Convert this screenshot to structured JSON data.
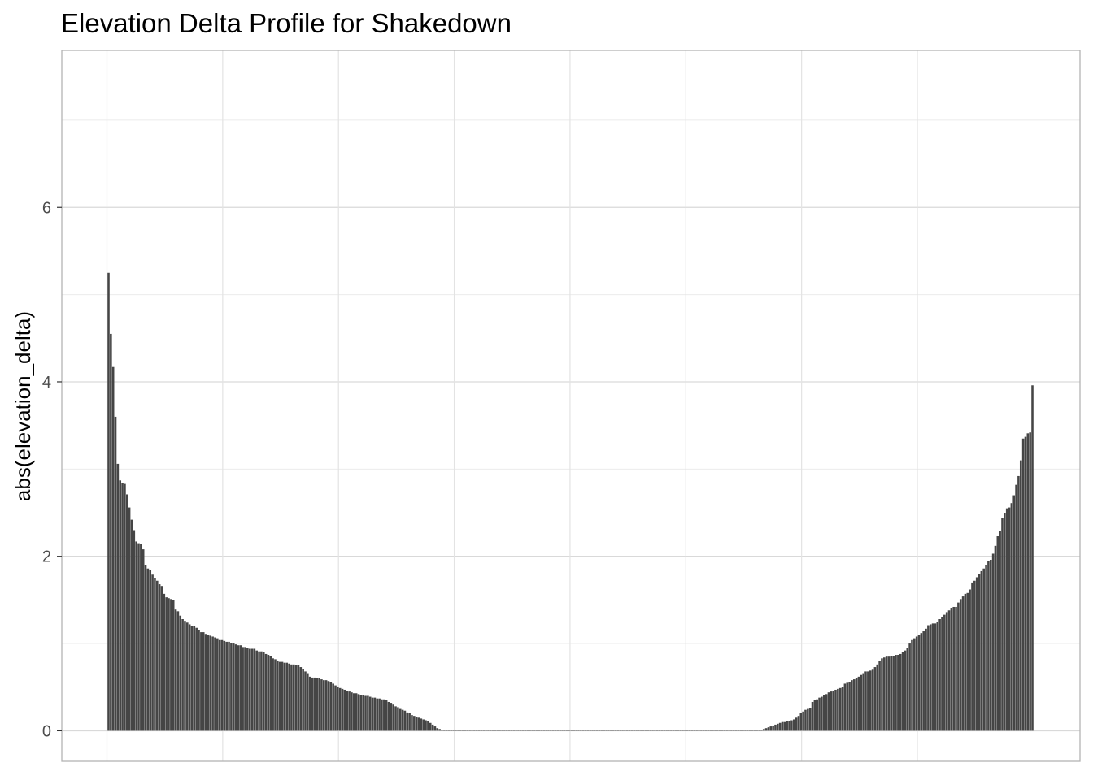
{
  "chart_data": {
    "type": "bar",
    "title": "Elevation Delta Profile for Shakedown",
    "xlabel": "",
    "ylabel": "abs(elevation_delta)",
    "ylim": [
      -0.35,
      7.8
    ],
    "yticks": [
      0,
      2,
      4,
      6
    ],
    "ytick_labels": [
      "0",
      "2",
      "4",
      "6"
    ],
    "grid": true,
    "bar_color": "#454545",
    "values": [
      5.25,
      4.55,
      4.17,
      3.6,
      3.06,
      2.87,
      2.84,
      2.83,
      2.71,
      2.56,
      2.42,
      2.3,
      2.17,
      2.15,
      2.14,
      2.08,
      1.9,
      1.86,
      1.84,
      1.79,
      1.75,
      1.72,
      1.68,
      1.66,
      1.57,
      1.53,
      1.52,
      1.51,
      1.5,
      1.39,
      1.37,
      1.32,
      1.28,
      1.26,
      1.24,
      1.22,
      1.2,
      1.2,
      1.18,
      1.15,
      1.13,
      1.13,
      1.11,
      1.1,
      1.09,
      1.08,
      1.07,
      1.06,
      1.04,
      1.04,
      1.03,
      1.02,
      1.02,
      1.01,
      1.0,
      0.99,
      0.98,
      0.98,
      0.96,
      0.96,
      0.95,
      0.94,
      0.94,
      0.94,
      0.92,
      0.91,
      0.91,
      0.9,
      0.88,
      0.87,
      0.86,
      0.83,
      0.82,
      0.8,
      0.79,
      0.79,
      0.78,
      0.78,
      0.77,
      0.76,
      0.76,
      0.75,
      0.75,
      0.73,
      0.71,
      0.68,
      0.66,
      0.62,
      0.61,
      0.61,
      0.6,
      0.6,
      0.59,
      0.58,
      0.58,
      0.57,
      0.56,
      0.54,
      0.52,
      0.5,
      0.49,
      0.48,
      0.47,
      0.46,
      0.45,
      0.44,
      0.43,
      0.43,
      0.42,
      0.41,
      0.41,
      0.4,
      0.4,
      0.39,
      0.38,
      0.38,
      0.37,
      0.37,
      0.36,
      0.36,
      0.35,
      0.33,
      0.32,
      0.3,
      0.28,
      0.27,
      0.25,
      0.24,
      0.23,
      0.21,
      0.2,
      0.18,
      0.17,
      0.16,
      0.15,
      0.14,
      0.13,
      0.12,
      0.11,
      0.09,
      0.07,
      0.05,
      0.03,
      0.02,
      0.01,
      0.01,
      0.005,
      0.002,
      0.0,
      0.0,
      0.0,
      0.0,
      0.0,
      0.0,
      0.0,
      0.0,
      0.0,
      0.0,
      0.0,
      0.0,
      0.0,
      0.0,
      0.0,
      0.0,
      0.0,
      0.0,
      0.0,
      0.0,
      0.0,
      0.0,
      0.0,
      0.0,
      0.0,
      0.0,
      0.0,
      0.0,
      0.0,
      0.0,
      0.0,
      0.0,
      0.0,
      0.0,
      0.0,
      0.0,
      0.0,
      0.0,
      0.0,
      0.0,
      0.0,
      0.0,
      0.0,
      0.0,
      0.0,
      0.0,
      0.0,
      0.0,
      0.0,
      0.0,
      0.0,
      0.0,
      0.0,
      0.0,
      0.0,
      0.0,
      0.0,
      0.0,
      0.0,
      0.0,
      0.0,
      0.0,
      0.0,
      0.0,
      0.0,
      0.0,
      0.0,
      0.0,
      0.0,
      0.0,
      0.0,
      0.0,
      0.0,
      0.0,
      0.0,
      0.0,
      0.0,
      0.0,
      0.0,
      0.0,
      0.0,
      0.0,
      0.0,
      0.0,
      0.0,
      0.0,
      0.0,
      0.0,
      0.0,
      0.0,
      0.0,
      0.0,
      0.0,
      0.0,
      0.0,
      0.0,
      0.0,
      0.0,
      0.0,
      0.0,
      0.0,
      0.0,
      0.0,
      0.0,
      0.0,
      0.0,
      0.0,
      0.0,
      0.0,
      0.0,
      0.0,
      0.0,
      0.0,
      0.0,
      0.0,
      0.0,
      0.0,
      0.0,
      0.0,
      0.0,
      0.0,
      0.0,
      0.0,
      0.0,
      0.0,
      0.0,
      0.0,
      0.0,
      0.0,
      0.0,
      0.0,
      0.0,
      0.0,
      0.0,
      0.01,
      0.02,
      0.03,
      0.04,
      0.05,
      0.06,
      0.07,
      0.08,
      0.09,
      0.1,
      0.1,
      0.11,
      0.11,
      0.12,
      0.13,
      0.15,
      0.17,
      0.2,
      0.22,
      0.24,
      0.25,
      0.26,
      0.33,
      0.35,
      0.36,
      0.38,
      0.39,
      0.41,
      0.42,
      0.44,
      0.45,
      0.46,
      0.47,
      0.48,
      0.49,
      0.5,
      0.54,
      0.55,
      0.56,
      0.58,
      0.59,
      0.6,
      0.62,
      0.64,
      0.66,
      0.68,
      0.68,
      0.69,
      0.7,
      0.73,
      0.76,
      0.8,
      0.83,
      0.84,
      0.85,
      0.85,
      0.86,
      0.86,
      0.87,
      0.87,
      0.88,
      0.9,
      0.92,
      0.95,
      1.0,
      1.04,
      1.06,
      1.08,
      1.1,
      1.12,
      1.14,
      1.17,
      1.21,
      1.22,
      1.23,
      1.23,
      1.25,
      1.28,
      1.3,
      1.33,
      1.36,
      1.38,
      1.41,
      1.42,
      1.42,
      1.47,
      1.51,
      1.54,
      1.57,
      1.58,
      1.62,
      1.7,
      1.72,
      1.76,
      1.8,
      1.83,
      1.86,
      1.9,
      1.95,
      1.96,
      2.03,
      2.12,
      2.23,
      2.29,
      2.44,
      2.5,
      2.55,
      2.56,
      2.61,
      2.7,
      2.82,
      2.92,
      3.1,
      3.35,
      3.37,
      3.41,
      3.42,
      3.96
    ]
  }
}
